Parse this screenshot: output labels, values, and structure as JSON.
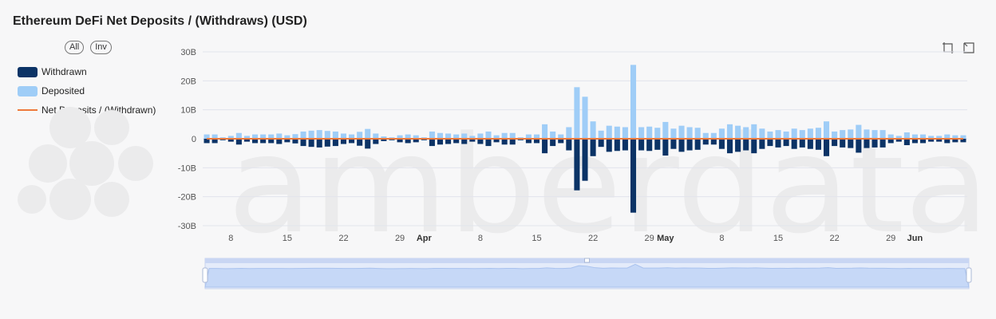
{
  "title": "Ethereum DeFi Net Deposits / (Withdraws) (USD)",
  "buttons": {
    "all": "All",
    "inv": "Inv"
  },
  "legend": {
    "withdrawn": "Withdrawn",
    "deposited": "Deposited",
    "net": "Net Deposits / (Withdrawn)"
  },
  "watermark": "amberdata",
  "colors": {
    "withdrawn": "#0b3366",
    "deposited": "#9fcdf7",
    "net": "#ee7a3c"
  },
  "toolbox": [
    "zoom-icon",
    "restore-icon"
  ],
  "chart_data": {
    "type": "bar",
    "x_axis_ticks": [
      {
        "date": "2023-03-08",
        "label": "8"
      },
      {
        "date": "2023-03-15",
        "label": "15"
      },
      {
        "date": "2023-03-22",
        "label": "22"
      },
      {
        "date": "2023-03-29",
        "label": "29"
      },
      {
        "date": "2023-04-01",
        "label": "Apr",
        "bold": true
      },
      {
        "date": "2023-04-08",
        "label": "8"
      },
      {
        "date": "2023-04-15",
        "label": "15"
      },
      {
        "date": "2023-04-22",
        "label": "22"
      },
      {
        "date": "2023-04-29",
        "label": "29"
      },
      {
        "date": "2023-05-01",
        "label": "May",
        "bold": true
      },
      {
        "date": "2023-05-08",
        "label": "8"
      },
      {
        "date": "2023-05-15",
        "label": "15"
      },
      {
        "date": "2023-05-22",
        "label": "22"
      },
      {
        "date": "2023-05-29",
        "label": "29"
      },
      {
        "date": "2023-06-01",
        "label": "Jun",
        "bold": true
      }
    ],
    "y_ticks": [
      "30B",
      "20B",
      "10B",
      "0",
      "-10B",
      "-20B",
      "-30B"
    ],
    "ylim": [
      -30,
      30
    ],
    "y_unit": "B USD",
    "x_start": "2023-03-05",
    "series": [
      {
        "name": "Deposited",
        "values": [
          1.5,
          1.5,
          0.5,
          1.0,
          2.0,
          1.0,
          1.5,
          1.5,
          1.5,
          1.8,
          1.2,
          1.6,
          2.5,
          2.8,
          3.0,
          2.7,
          2.5,
          1.8,
          1.5,
          2.4,
          3.4,
          1.8,
          0.8,
          0.5,
          1.2,
          1.5,
          1.2,
          0.5,
          2.5,
          2.0,
          1.8,
          1.5,
          1.8,
          1.0,
          1.8,
          2.5,
          1.2,
          2.0,
          2.0,
          0.5,
          1.5,
          1.5,
          5.0,
          2.5,
          1.5,
          4.0,
          17.8,
          14.5,
          6.0,
          2.8,
          4.5,
          4.2,
          4.0,
          25.5,
          4.0,
          4.2,
          3.8,
          5.8,
          3.5,
          4.5,
          4.0,
          3.8,
          2.0,
          2.0,
          3.5,
          5.0,
          4.5,
          4.0,
          5.0,
          3.5,
          2.5,
          3.0,
          2.5,
          3.5,
          3.0,
          3.5,
          3.8,
          6.0,
          2.5,
          3.0,
          3.2,
          4.8,
          3.2,
          3.0,
          3.0,
          1.5,
          1.0,
          2.2,
          1.5,
          1.5,
          1.0,
          1.0,
          1.5,
          1.2,
          1.2
        ]
      },
      {
        "name": "Withdrawn",
        "values": [
          -1.5,
          -1.5,
          -0.5,
          -1.0,
          -2.0,
          -1.0,
          -1.5,
          -1.5,
          -1.5,
          -1.8,
          -1.2,
          -1.6,
          -2.5,
          -2.8,
          -3.0,
          -2.7,
          -2.5,
          -1.8,
          -1.5,
          -2.4,
          -3.4,
          -1.8,
          -0.8,
          -0.5,
          -1.2,
          -1.5,
          -1.2,
          -0.5,
          -2.5,
          -2.0,
          -1.8,
          -1.5,
          -1.8,
          -1.0,
          -1.8,
          -2.5,
          -1.2,
          -2.0,
          -2.0,
          -0.5,
          -1.5,
          -1.5,
          -5.0,
          -2.5,
          -1.5,
          -4.0,
          -17.8,
          -14.5,
          -6.0,
          -2.8,
          -4.5,
          -4.2,
          -4.0,
          -25.5,
          -4.0,
          -4.2,
          -3.8,
          -5.8,
          -3.5,
          -4.5,
          -4.0,
          -3.8,
          -2.0,
          -2.0,
          -3.5,
          -5.0,
          -4.5,
          -4.0,
          -5.0,
          -3.5,
          -2.5,
          -3.0,
          -2.5,
          -3.5,
          -3.0,
          -3.5,
          -3.8,
          -6.0,
          -2.5,
          -3.0,
          -3.2,
          -4.8,
          -3.2,
          -3.0,
          -3.0,
          -1.5,
          -1.0,
          -2.2,
          -1.5,
          -1.5,
          -1.0,
          -1.0,
          -1.5,
          -1.2,
          -1.2
        ]
      },
      {
        "name": "Net Deposits / (Withdrawn)",
        "values": [
          0,
          0,
          0,
          0,
          0,
          0,
          0,
          0,
          0,
          0,
          0,
          0,
          0,
          0,
          0,
          0,
          0,
          0,
          0,
          0,
          0,
          0,
          0,
          0,
          0,
          0,
          0,
          0,
          0,
          0,
          0,
          0,
          0,
          0,
          0,
          0,
          0,
          0,
          0,
          0,
          0,
          0,
          0,
          0,
          0,
          0,
          0,
          0,
          0,
          0,
          0,
          0,
          0,
          0,
          0,
          0,
          0,
          0,
          0,
          0,
          0,
          0,
          0,
          0,
          0,
          0,
          0,
          0,
          0,
          0,
          0,
          0,
          0,
          0,
          0,
          0,
          0,
          0,
          0,
          0,
          0,
          0,
          0,
          0,
          0,
          0,
          0,
          0,
          0,
          0,
          0,
          0,
          0,
          0,
          0
        ]
      }
    ],
    "grid": true,
    "legend_position": "left",
    "has_datazoom_slider": true
  }
}
